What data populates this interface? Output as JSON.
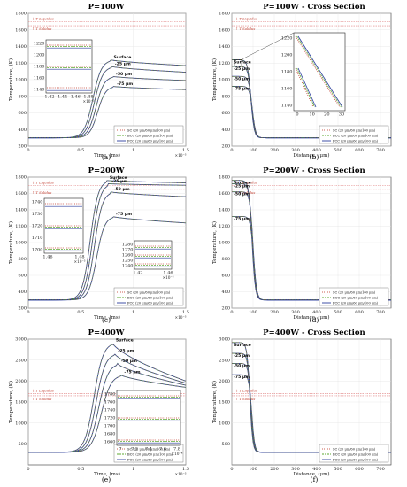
{
  "legend": {
    "sc": "SC (20 μm/60 μm/100 μm)",
    "bcc": "BCC (20 μm/60 μm/100 μm)",
    "fcc": "FCC (20 μm/60 μm/100 μm)"
  },
  "ref_labels": {
    "liquidus": "↓ T Liquidus",
    "solidus": "↑ T Solidus"
  },
  "colors": {
    "sc": "#c0392b",
    "bcc": "#5da832",
    "fcc": "#2b3d9e",
    "ref": "#e07f7f",
    "curve": "#3a3f80"
  },
  "chart_data": [
    {
      "id": "a",
      "type": "line",
      "title": "P=100W",
      "caption": "(a)",
      "xlabel": "Time, (ms)",
      "ylabel": "Temperature, (K)",
      "xlim": [
        0,
        0.0015
      ],
      "ylim": [
        200,
        1800
      ],
      "xticks": [
        "0",
        "0.5",
        "1",
        "1.5"
      ],
      "x_exponent": "×10⁻³",
      "yticks": [
        "200",
        "400",
        "600",
        "800",
        "1000",
        "1200",
        "1400",
        "1600",
        "1800"
      ],
      "liquidus": 1700,
      "solidus": 1650,
      "curves": [
        {
          "label": "Surface",
          "t0": 0.00045,
          "t1": 0.00078,
          "peak": 1240,
          "end": 1170
        },
        {
          "label": "-25 μm",
          "t0": 0.00047,
          "t1": 0.00079,
          "peak": 1160,
          "end": 1090
        },
        {
          "label": "-50 μm",
          "t0": 0.00049,
          "t1": 0.0008,
          "peak": 1040,
          "end": 990
        },
        {
          "label": "-75 μm",
          "t0": 0.00051,
          "t1": 0.00081,
          "peak": 920,
          "end": 880
        }
      ],
      "inset": {
        "yticks": [
          "1140",
          "1160",
          "1180",
          "1200",
          "1220"
        ],
        "xticks": [
          "1.42",
          "1.44",
          "1.46",
          "1.48"
        ],
        "x_exponent": "×10⁻³"
      }
    },
    {
      "id": "b",
      "type": "line",
      "title": "P=100W - Cross Section",
      "caption": "(b)",
      "xlabel": "Distance, (μm)",
      "ylabel": "Temperature, (K)",
      "xlim": [
        0,
        750
      ],
      "ylim": [
        200,
        1800
      ],
      "xticks": [
        "0",
        "100",
        "200",
        "300",
        "400",
        "500",
        "600",
        "700"
      ],
      "yticks": [
        "200",
        "400",
        "600",
        "800",
        "1000",
        "1200",
        "1400",
        "1600",
        "1800"
      ],
      "liquidus": 1700,
      "solidus": 1650,
      "curves": [
        {
          "label": "Surface",
          "peak": 1240,
          "c": 90,
          "w": 45
        },
        {
          "label": "-25 μm",
          "peak": 1160,
          "c": 92,
          "w": 45
        },
        {
          "label": "-50 μm",
          "peak": 1040,
          "c": 95,
          "w": 45
        },
        {
          "label": "-75 μm",
          "peak": 920,
          "c": 98,
          "w": 45
        }
      ],
      "inset": {
        "yticks": [
          "1140",
          "1160",
          "1180",
          "1200",
          "1220"
        ],
        "xticks": [
          "0",
          "10",
          "20",
          "30"
        ]
      }
    },
    {
      "id": "c",
      "type": "line",
      "title": "P=200W",
      "caption": "(c)",
      "xlabel": "Time, (ms)",
      "ylabel": "Temperature, (K)",
      "xlim": [
        0,
        0.0015
      ],
      "ylim": [
        200,
        1800
      ],
      "xticks": [
        "0",
        "0.5",
        "1",
        "1.5"
      ],
      "x_exponent": "×10⁻³",
      "yticks": [
        "200",
        "400",
        "600",
        "800",
        "1000",
        "1200",
        "1400",
        "1600",
        "1800"
      ],
      "liquidus": 1700,
      "solidus": 1650,
      "curves": [
        {
          "label": "Surface",
          "t0": 0.00044,
          "t1": 0.00074,
          "peak": 1760,
          "end": 1730
        },
        {
          "label": "-25 μm",
          "t0": 0.00046,
          "t1": 0.00076,
          "peak": 1720,
          "end": 1700
        },
        {
          "label": "-50 μm",
          "t0": 0.00048,
          "t1": 0.00078,
          "peak": 1620,
          "end": 1560
        },
        {
          "label": "-75 μm",
          "t0": 0.0005,
          "t1": 0.0008,
          "peak": 1320,
          "end": 1240
        }
      ],
      "inset": {
        "yticks": [
          "1700",
          "1710",
          "1720",
          "1730",
          "1740"
        ],
        "xticks": [
          "1.46",
          "1.48"
        ],
        "x_exponent": "×10⁻³"
      },
      "inset2": {
        "yticks": [
          "1240",
          "1250",
          "1260",
          "1270",
          "1280"
        ],
        "xticks": [
          "1.42",
          "1.46"
        ],
        "x_exponent": "×10⁻³"
      }
    },
    {
      "id": "d",
      "type": "line",
      "title": "P=200W - Cross Section",
      "caption": "(d)",
      "xlabel": "Distance, (μm)",
      "ylabel": "Temperature, (K)",
      "xlim": [
        0,
        750
      ],
      "ylim": [
        200,
        1800
      ],
      "xticks": [
        "0",
        "100",
        "200",
        "300",
        "400",
        "500",
        "600",
        "700"
      ],
      "yticks": [
        "200",
        "400",
        "600",
        "800",
        "1000",
        "1200",
        "1400",
        "1600",
        "1800"
      ],
      "liquidus": 1700,
      "solidus": 1650,
      "curves": [
        {
          "label": "Surface",
          "peak": 1760,
          "c": 95,
          "w": 45
        },
        {
          "label": "-25 μm",
          "peak": 1720,
          "c": 97,
          "w": 45
        },
        {
          "label": "-50 μm",
          "peak": 1620,
          "c": 100,
          "w": 45
        },
        {
          "label": "-75 μm",
          "peak": 1320,
          "c": 103,
          "w": 45
        }
      ]
    },
    {
      "id": "e",
      "type": "line",
      "title": "P=400W",
      "caption": "(e)",
      "xlabel": "Time, (ms)",
      "ylabel": "Temperature, (K)",
      "xlim": [
        0,
        0.0015
      ],
      "ylim": [
        0,
        3000
      ],
      "xticks": [
        "0",
        "0.5",
        "1",
        "1.5"
      ],
      "x_exponent": "×10⁻³",
      "yticks": [
        "500",
        "1000",
        "1500",
        "2000",
        "2500",
        "3000"
      ],
      "liquidus": 1700,
      "solidus": 1650,
      "curves": [
        {
          "label": "Surface",
          "t0": 0.00045,
          "t1": 0.0008,
          "peak": 2920,
          "end": 2000
        },
        {
          "label": "-25 μm",
          "t0": 0.00047,
          "t1": 0.00082,
          "peak": 2660,
          "end": 1950
        },
        {
          "label": "-50 μm",
          "t0": 0.00049,
          "t1": 0.00085,
          "peak": 2420,
          "end": 1900
        },
        {
          "label": "-75 μm",
          "t0": 0.00051,
          "t1": 0.00088,
          "peak": 2150,
          "end": 1850
        }
      ],
      "inset": {
        "yticks": [
          "1660",
          "1680",
          "1700",
          "1720",
          "1740",
          "1760",
          "1780"
        ],
        "xticks": [
          "7",
          "7.2",
          "7.4",
          "7.6",
          "7.8"
        ],
        "x_exponent": "×10⁻⁴"
      }
    },
    {
      "id": "f",
      "type": "line",
      "title": "P=400W - Cross Section",
      "caption": "(f)",
      "xlabel": "Distance, (μm)",
      "ylabel": "Temperature, (K)",
      "xlim": [
        0,
        750
      ],
      "ylim": [
        0,
        3000
      ],
      "xticks": [
        "0",
        "100",
        "200",
        "300",
        "400",
        "500",
        "600",
        "700"
      ],
      "yticks": [
        "500",
        "1000",
        "1500",
        "2000",
        "2500",
        "3000"
      ],
      "liquidus": 1700,
      "solidus": 1650,
      "curves": [
        {
          "label": "Surface",
          "peak": 2920,
          "c": 85,
          "w": 40
        },
        {
          "label": "-25 μm",
          "peak": 2660,
          "c": 88,
          "w": 40
        },
        {
          "label": "-50 μm",
          "peak": 2420,
          "c": 91,
          "w": 40
        },
        {
          "label": "-75 μm",
          "peak": 2150,
          "c": 94,
          "w": 40
        }
      ]
    }
  ]
}
